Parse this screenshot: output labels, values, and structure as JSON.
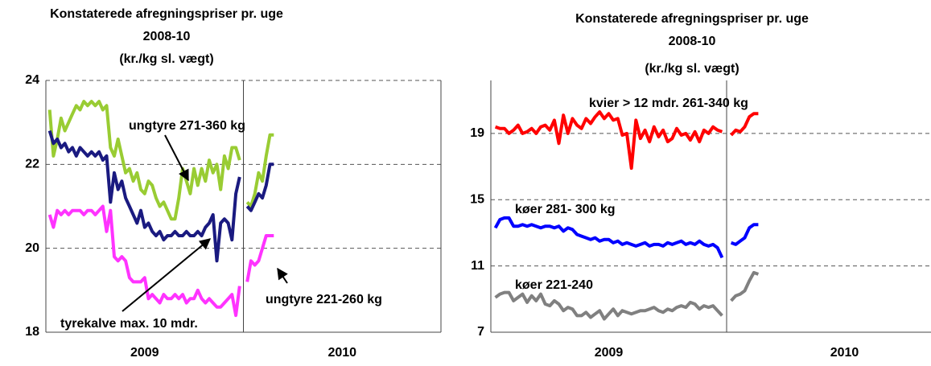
{
  "chart_data": [
    {
      "type": "line",
      "title": [
        "Konstaterede afregningspriser pr. uge",
        "2008-10",
        "(kr./kg sl. vægt)"
      ],
      "xlim": [
        0,
        104
      ],
      "x_bands": [
        {
          "label": "2009",
          "start": 0,
          "end": 52
        },
        {
          "label": "2010",
          "start": 52,
          "end": 104
        }
      ],
      "ylim": [
        18,
        24
      ],
      "yticks": [
        18,
        20,
        22,
        24
      ],
      "grid": true,
      "x": [
        1,
        2,
        3,
        4,
        5,
        6,
        7,
        8,
        9,
        10,
        11,
        12,
        13,
        14,
        15,
        16,
        17,
        18,
        19,
        20,
        21,
        22,
        23,
        24,
        25,
        26,
        27,
        28,
        29,
        30,
        31,
        32,
        33,
        34,
        35,
        36,
        37,
        38,
        39,
        40,
        41,
        42,
        43,
        44,
        45,
        46,
        47,
        48,
        49,
        50,
        51,
        52,
        53,
        54,
        55,
        56,
        57,
        58,
        59,
        60
      ],
      "series": [
        {
          "name": "ungtyre 271-360 kg",
          "color": "#99cc33",
          "values": [
            23.3,
            22.2,
            22.6,
            23.1,
            22.8,
            23.0,
            23.2,
            23.4,
            23.3,
            23.5,
            23.4,
            23.5,
            23.4,
            23.5,
            23.3,
            23.4,
            22.4,
            22.2,
            22.6,
            22.2,
            21.8,
            21.9,
            21.6,
            21.8,
            21.4,
            21.3,
            21.6,
            21.5,
            21.2,
            21.0,
            21.1,
            20.9,
            20.7,
            20.7,
            21.2,
            21.9,
            21.6,
            21.3,
            21.9,
            21.5,
            21.9,
            21.6,
            22.1,
            21.8,
            22.0,
            21.4,
            22.2,
            21.9,
            22.4,
            22.4,
            22.1,
            null,
            21.1,
            21.0,
            21.3,
            21.8,
            21.6,
            22.2,
            22.7,
            22.7
          ]
        },
        {
          "name": "tyrekalve max. 10 mdr.",
          "color": "#1a1a80",
          "values": [
            22.8,
            22.5,
            22.6,
            22.4,
            22.5,
            22.3,
            22.4,
            22.2,
            22.4,
            22.3,
            22.2,
            22.3,
            22.2,
            22.3,
            22.1,
            22.2,
            21.1,
            21.8,
            21.4,
            21.6,
            21.2,
            21.0,
            20.8,
            20.6,
            20.9,
            20.5,
            20.6,
            20.4,
            20.3,
            20.4,
            20.2,
            20.3,
            20.3,
            20.4,
            20.3,
            20.3,
            20.4,
            20.3,
            20.3,
            20.4,
            20.3,
            20.5,
            20.6,
            20.8,
            19.7,
            20.6,
            20.7,
            20.6,
            20.2,
            21.3,
            21.7,
            null,
            21.0,
            20.9,
            21.1,
            21.3,
            21.2,
            21.5,
            22.0,
            22.0
          ]
        },
        {
          "name": "ungtyre 221-260 kg",
          "color": "#ff33ff",
          "values": [
            20.8,
            20.5,
            20.9,
            20.8,
            20.9,
            20.8,
            20.9,
            20.9,
            20.9,
            20.8,
            20.9,
            20.9,
            20.8,
            20.9,
            21.0,
            20.4,
            20.9,
            19.8,
            19.7,
            19.8,
            19.7,
            19.3,
            19.2,
            19.2,
            19.2,
            19.3,
            18.8,
            18.9,
            18.8,
            18.7,
            18.9,
            18.8,
            18.8,
            18.9,
            18.8,
            18.9,
            18.7,
            18.8,
            18.8,
            19.0,
            18.8,
            18.7,
            18.8,
            18.7,
            18.6,
            18.6,
            18.7,
            18.8,
            18.9,
            18.4,
            19.1,
            null,
            19.2,
            19.7,
            19.6,
            19.7,
            20.0,
            20.3,
            20.3,
            20.3
          ]
        }
      ]
    },
    {
      "type": "line",
      "title": [
        "Konstaterede afregningspriser pr. uge",
        "2008-10",
        "(kr./kg sl. vægt)"
      ],
      "xlim": [
        0,
        104
      ],
      "x_bands": [
        {
          "label": "2009",
          "start": 0,
          "end": 52
        },
        {
          "label": "2010",
          "start": 52,
          "end": 104
        }
      ],
      "ylim": [
        7,
        22.2
      ],
      "yticks": [
        7,
        11,
        15,
        19
      ],
      "grid": true,
      "x": [
        1,
        2,
        3,
        4,
        5,
        6,
        7,
        8,
        9,
        10,
        11,
        12,
        13,
        14,
        15,
        16,
        17,
        18,
        19,
        20,
        21,
        22,
        23,
        24,
        25,
        26,
        27,
        28,
        29,
        30,
        31,
        32,
        33,
        34,
        35,
        36,
        37,
        38,
        39,
        40,
        41,
        42,
        43,
        44,
        45,
        46,
        47,
        48,
        49,
        50,
        51,
        52,
        53,
        54,
        55,
        56,
        57,
        58,
        59
      ],
      "series": [
        {
          "name": "kvier > 12 mdr. 261-340 kg",
          "color": "#ff0000",
          "values": [
            19.4,
            19.3,
            19.3,
            19.0,
            19.2,
            19.5,
            19.0,
            19.1,
            19.3,
            19.0,
            19.4,
            19.5,
            19.2,
            19.8,
            18.4,
            20.1,
            19.0,
            19.9,
            19.5,
            19.3,
            19.9,
            19.6,
            20.0,
            20.3,
            19.9,
            20.2,
            19.8,
            19.9,
            18.9,
            19.0,
            16.9,
            19.8,
            18.7,
            19.2,
            18.5,
            19.4,
            18.8,
            19.2,
            18.5,
            18.7,
            19.3,
            18.9,
            19.0,
            18.6,
            19.1,
            18.5,
            19.2,
            19.0,
            19.4,
            19.2,
            19.1,
            null,
            18.9,
            19.2,
            19.1,
            19.4,
            20.0,
            20.2,
            20.2
          ]
        },
        {
          "name": "køer 281- 300 kg",
          "color": "#0000ff",
          "values": [
            13.3,
            13.8,
            13.9,
            13.9,
            13.4,
            13.4,
            13.5,
            13.4,
            13.5,
            13.4,
            13.3,
            13.4,
            13.4,
            13.3,
            13.4,
            13.1,
            13.3,
            13.2,
            12.9,
            12.8,
            12.7,
            12.6,
            12.7,
            12.5,
            12.6,
            12.6,
            12.4,
            12.5,
            12.3,
            12.4,
            12.3,
            12.2,
            12.3,
            12.4,
            12.2,
            12.3,
            12.3,
            12.2,
            12.4,
            12.3,
            12.4,
            12.5,
            12.3,
            12.4,
            12.3,
            12.5,
            12.3,
            12.2,
            12.3,
            12.1,
            11.5,
            null,
            12.4,
            12.3,
            12.5,
            12.7,
            13.3,
            13.5,
            13.5
          ]
        },
        {
          "name": "køer 221-240",
          "color": "#808080",
          "values": [
            9.1,
            9.3,
            9.4,
            9.4,
            8.9,
            9.1,
            9.3,
            8.8,
            9.2,
            8.9,
            9.3,
            8.7,
            8.6,
            8.9,
            8.7,
            8.3,
            8.5,
            8.4,
            8.0,
            8.0,
            8.2,
            7.9,
            8.1,
            8.3,
            7.8,
            8.1,
            8.4,
            8.0,
            8.3,
            8.2,
            8.1,
            8.2,
            8.3,
            8.3,
            8.4,
            8.5,
            8.3,
            8.2,
            8.4,
            8.3,
            8.5,
            8.6,
            8.5,
            8.8,
            8.7,
            8.4,
            8.6,
            8.5,
            8.6,
            8.3,
            8.0,
            null,
            8.9,
            9.2,
            9.3,
            9.5,
            10.1,
            10.6,
            10.5
          ]
        }
      ]
    }
  ]
}
